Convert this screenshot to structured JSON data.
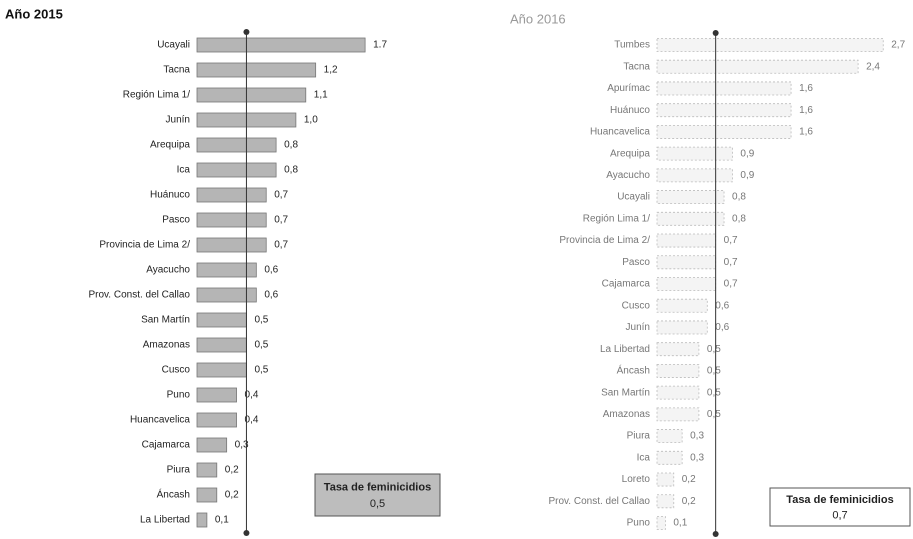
{
  "chart_data": [
    {
      "type": "bar",
      "title": "Año 2015",
      "categories": [
        "Ucayali",
        "Tacna",
        "Región Lima 1/",
        "Junín",
        "Arequipa",
        "Ica",
        "Huánuco",
        "Pasco",
        "Provincia de Lima 2/",
        "Ayacucho",
        "Prov. Const. del Callao",
        "San Martín",
        "Amazonas",
        "Cusco",
        "Puno",
        "Huancavelica",
        "Cajamarca",
        "Piura",
        "Áncash",
        "La Libertad"
      ],
      "values": [
        1.7,
        1.2,
        1.1,
        1.0,
        0.8,
        0.8,
        0.7,
        0.7,
        0.7,
        0.6,
        0.6,
        0.5,
        0.5,
        0.5,
        0.4,
        0.4,
        0.3,
        0.2,
        0.2,
        0.1
      ],
      "value_labels": [
        "1.7",
        "1,2",
        "1,1",
        "1,0",
        "0,8",
        "0,8",
        "0,7",
        "0,7",
        "0,7",
        "0,6",
        "0,6",
        "0,5",
        "0,5",
        "0,5",
        "0,4",
        "0,4",
        "0,3",
        "0,2",
        "0,2",
        "0,1"
      ],
      "color": "#b5b5b5",
      "xlim": [
        0,
        1.8
      ],
      "average": {
        "label": "Tasa de feminicidios",
        "value": 0.5,
        "value_label": "0,5"
      }
    },
    {
      "type": "bar",
      "title": "Año 2016",
      "categories": [
        "Tumbes",
        "Tacna",
        "Apurímac",
        "Huánuco",
        "Huancavelica",
        "Arequipa",
        "Ayacucho",
        "Ucayali",
        "Región Lima 1/",
        "Provincia de Lima 2/",
        "Pasco",
        "Cajamarca",
        "Cusco",
        "Junín",
        "La Libertad",
        "Áncash",
        "San Martín",
        "Amazonas",
        "Piura",
        "Ica",
        "Loreto",
        "Prov. Const. del Callao",
        "Puno"
      ],
      "values": [
        2.7,
        2.4,
        1.6,
        1.6,
        1.6,
        0.9,
        0.9,
        0.8,
        0.8,
        0.7,
        0.7,
        0.7,
        0.6,
        0.6,
        0.5,
        0.5,
        0.5,
        0.5,
        0.3,
        0.3,
        0.2,
        0.2,
        0.1
      ],
      "value_labels": [
        "2,7",
        "2,4",
        "1,6",
        "1,6",
        "1,6",
        "0,9",
        "0,9",
        "0,8",
        "0,8",
        "0,7",
        "0,7",
        "0,7",
        "0,6",
        "0,6",
        "0,5",
        "0,5",
        "0,5",
        "0,5",
        "0,3",
        "0,3",
        "0,2",
        "0,2",
        "0,1"
      ],
      "color": "#f4f4f4",
      "xlim": [
        0,
        2.9
      ],
      "average": {
        "label": "Tasa de feminicidios",
        "value": 0.7,
        "value_label": "0,7"
      }
    }
  ]
}
